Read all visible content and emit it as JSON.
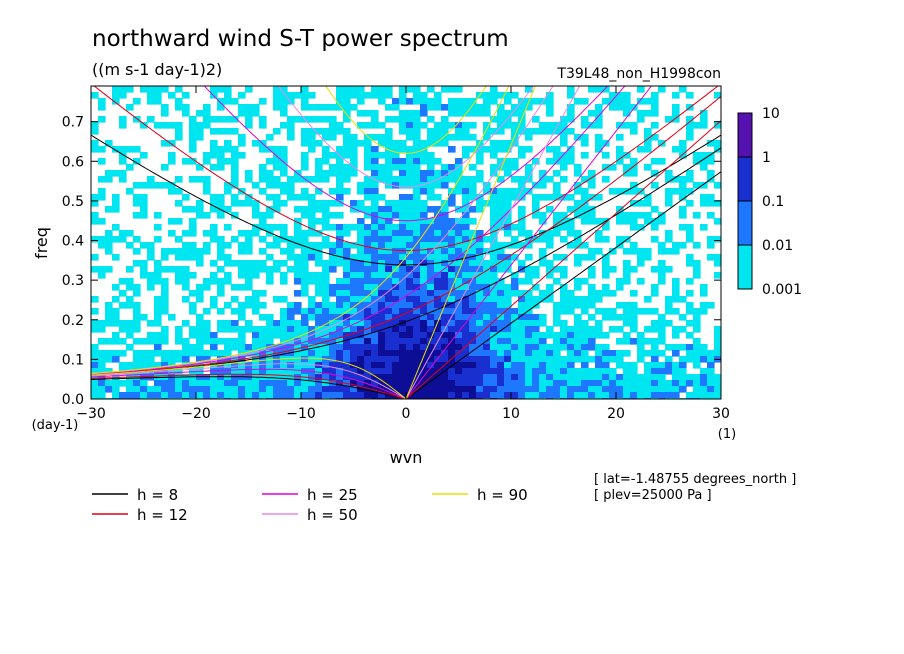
{
  "chart_data": {
    "type": "heatmap",
    "title": "northward wind S-T power spectrum",
    "units": "((m s-1 day-1)2)",
    "experiment": "T39L48_non_H1998con",
    "xlabel": "wvn",
    "x_unit": "(1)",
    "ylabel": "freq",
    "y_unit": "(day-1)",
    "xlim": [
      -30,
      30
    ],
    "ylim": [
      0,
      0.79
    ],
    "x_ticks": [
      -30,
      -20,
      -10,
      0,
      10,
      20,
      30
    ],
    "y_ticks": [
      0.0,
      0.1,
      0.2,
      0.3,
      0.4,
      0.5,
      0.6,
      0.7
    ],
    "colorbar": {
      "levels": [
        0.001,
        0.01,
        0.1,
        1,
        10
      ],
      "labels": [
        "0.001",
        "0.01",
        "0.1",
        "1",
        "10"
      ],
      "colors": [
        "#00e6f0",
        "#1e78ff",
        "#1a2fd0",
        "#0c0e96",
        "#5512b0"
      ]
    },
    "dispersion_curves": [
      {
        "name": "h =  8",
        "h": 8,
        "color": "#000000"
      },
      {
        "name": "h = 12",
        "h": 12,
        "color": "#e0001a"
      },
      {
        "name": "h = 25",
        "h": 25,
        "color": "#e000d8"
      },
      {
        "name": "h = 50",
        "h": 50,
        "color": "#e688f0"
      },
      {
        "name": "h = 90",
        "h": 90,
        "color": "#e8e000"
      }
    ],
    "annotations": [
      "[ lat=-1.48755 degrees_north ]",
      "[ plev=25000 Pa ]"
    ]
  }
}
